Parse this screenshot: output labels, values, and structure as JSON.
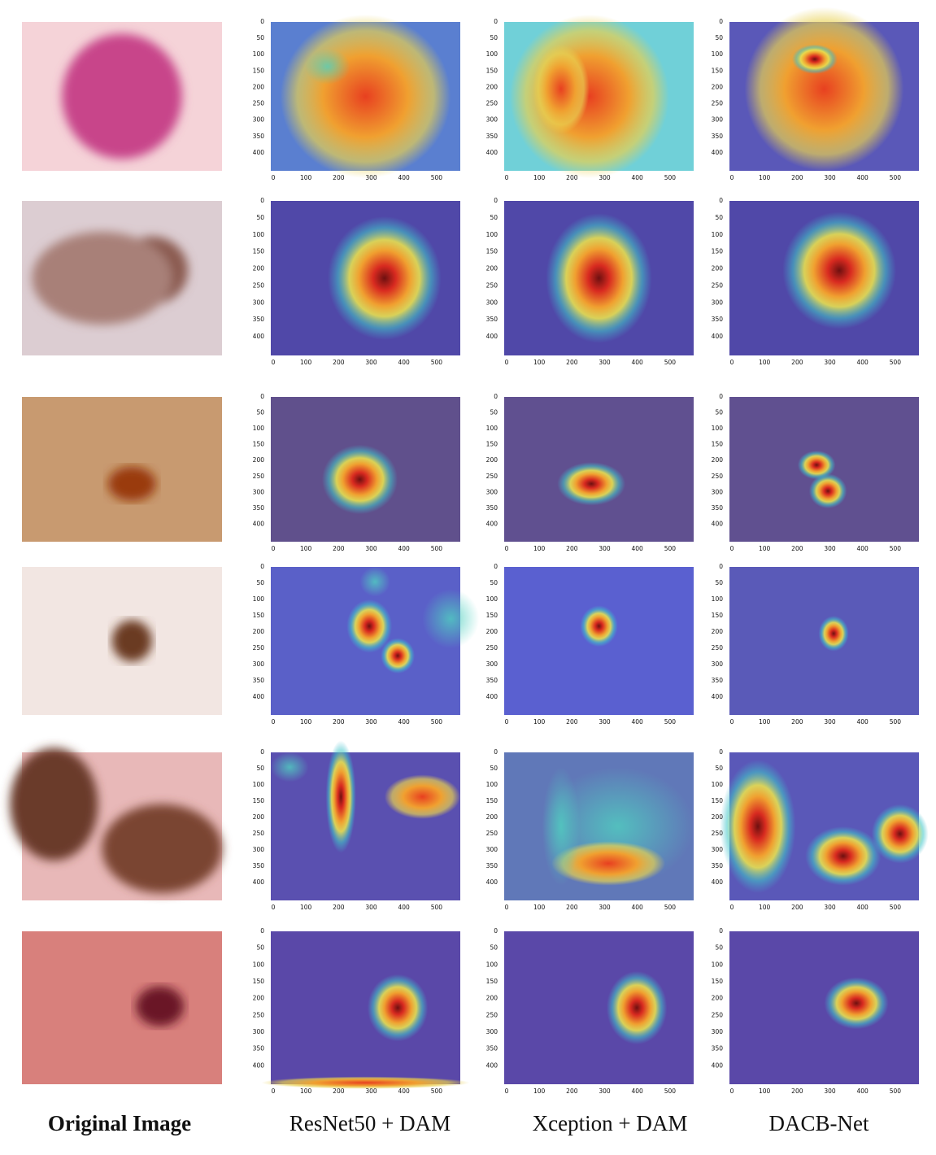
{
  "columns": [
    "Original Image",
    "ResNet50 + DAM",
    "Xception + DAM",
    "DACB-Net"
  ],
  "heatmap_axes": {
    "xticks": [
      0,
      100,
      200,
      300,
      400,
      500
    ],
    "yticks": [
      0,
      50,
      100,
      150,
      200,
      250,
      300,
      350,
      400
    ]
  }
}
